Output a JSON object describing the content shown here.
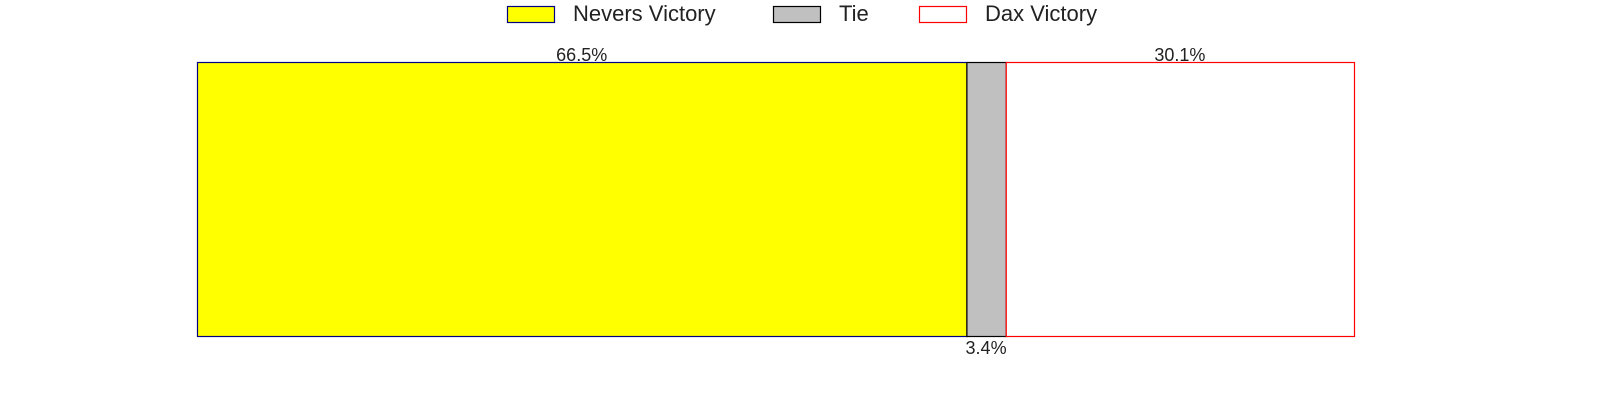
{
  "chart_data": {
    "type": "bar",
    "orientation": "horizontal-stacked",
    "categories": [
      "Nevers Victory",
      "Tie",
      "Dax Victory"
    ],
    "values": [
      66.5,
      3.4,
      30.1
    ],
    "value_labels": [
      "66.5%",
      "3.4%",
      "30.1%"
    ],
    "xlim": [
      0,
      100
    ],
    "title": "",
    "xlabel": "",
    "ylabel": "",
    "legend_position": "top-center",
    "grid": false
  },
  "series_style": [
    {
      "name": "Nevers Victory",
      "fill": "#ffff00",
      "stroke": "#000080"
    },
    {
      "name": "Tie",
      "fill": "#c0c0c0",
      "stroke": "#000000"
    },
    {
      "name": "Dax Victory",
      "fill": "#ffffff",
      "stroke": "#ff0000"
    }
  ]
}
